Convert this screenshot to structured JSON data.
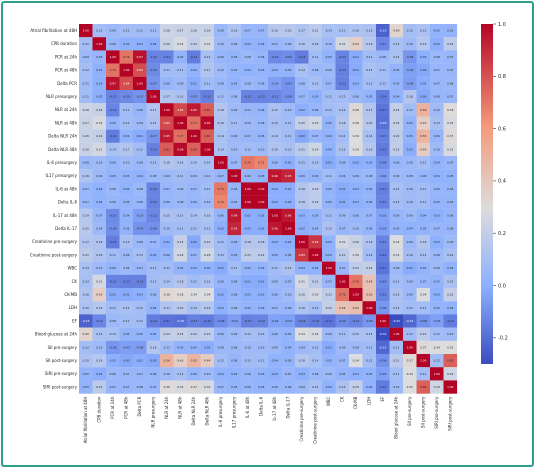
{
  "chart_data": {
    "type": "heatmap",
    "title": "",
    "xlabel": "",
    "ylabel": "",
    "variables": [
      "Atrial fibrillation at 48H",
      "CPB duration",
      "PCR at 24h",
      "PCR at 48h",
      "Delta PCR",
      "NLR presurgery",
      "NLR at 24h",
      "NLR at 48h",
      "Delta NLR 24h",
      "Delta NLR 48h",
      "IL-6 presurgery",
      "IL17 presurgery",
      "IL-6 at 48h",
      "Delta IL-6",
      "IL-17 at 48h",
      "Delta IL-17",
      "Creatinine pre-surgery",
      "Creatinine post-surgery",
      "WBC",
      "CK",
      "CK-MB",
      "LDH",
      "EF",
      "Blood glucose at 24h",
      "SII pre-surgery",
      "SII post-surgery",
      "SIRI pre-surgery",
      "SIRI post-surgery"
    ],
    "colorbar": {
      "min": -0.3,
      "max": 1.0,
      "ticks": [
        1.0,
        0.8,
        0.6,
        0.4,
        0.2,
        0.0,
        -0.2
      ]
    },
    "matrix": [
      [
        1.0,
        0.12,
        0.09,
        0.12,
        0.11,
        0.11,
        0.28,
        0.27,
        0.26,
        0.26,
        0.08,
        0.16,
        0.07,
        0.07,
        0.19,
        0.2,
        0.17,
        0.21,
        0.14,
        0.13,
        0.16,
        0.15,
        -0.23,
        0.4,
        0.12,
        0.15,
        0.05,
        0.05
      ],
      [
        0.12,
        1.0,
        0.06,
        0.03,
        0.03,
        0.02,
        0.26,
        0.32,
        0.24,
        0.31,
        0.1,
        0.09,
        0.04,
        0.04,
        0.07,
        0.09,
        0.16,
        0.16,
        0.1,
        0.31,
        0.43,
        0.19,
        -0.11,
        0.14,
        0.1,
        0.19,
        0.02,
        0.22
      ],
      [
        0.09,
        0.06,
        1.0,
        0.76,
        0.97,
        -0.12,
        -0.12,
        0.05,
        -0.14,
        0.14,
        0.06,
        0.05,
        0.08,
        0.06,
        -0.1,
        -0.09,
        -0.14,
        0.11,
        0.05,
        -0.12,
        0.01,
        0.11,
        0.08,
        0.14,
        -0.06,
        0.03,
        0.08,
        0.07
      ],
      [
        0.12,
        0.03,
        0.76,
        1.0,
        0.84,
        -0.1,
        0.11,
        0.11,
        0.04,
        0.17,
        0.1,
        0.05,
        0.04,
        0.05,
        0.04,
        0.05,
        0.14,
        0.08,
        0.09,
        -0.13,
        0.01,
        0.14,
        0.11,
        0.05,
        -0.03,
        0.0,
        0.07,
        0.07
      ],
      [
        0.11,
        0.03,
        0.97,
        0.84,
        1.0,
        -0.07,
        0.06,
        0.09,
        0.01,
        0.11,
        0.08,
        0.04,
        0.08,
        0.06,
        -0.03,
        -0.07,
        0.08,
        0.13,
        0.07,
        -0.13,
        0.03,
        0.12,
        0.11,
        0.05,
        -0.04,
        0.02,
        0.07,
        0.08
      ],
      [
        0.11,
        0.02,
        -0.12,
        -0.1,
        -0.07,
        1.0,
        0.17,
        0.15,
        -0.07,
        -0.13,
        0.11,
        0.08,
        -0.12,
        -0.12,
        -0.11,
        -0.08,
        0.07,
        0.03,
        0.11,
        0.12,
        0.08,
        0.05,
        -0.14,
        0.04,
        0.18,
        0.0,
        0.06,
        0.07
      ],
      [
        0.28,
        0.26,
        -0.12,
        0.11,
        0.06,
        0.17,
        1.0,
        0.85,
        0.95,
        0.81,
        0.18,
        0.09,
        0.07,
        0.06,
        0.15,
        0.1,
        0.02,
        0.06,
        0.11,
        0.14,
        0.38,
        0.17,
        -0.17,
        0.24,
        0.11,
        0.56,
        0.1,
        0.36
      ],
      [
        0.27,
        0.32,
        0.05,
        0.11,
        0.09,
        0.15,
        0.85,
        1.0,
        0.77,
        0.99,
        0.16,
        0.11,
        0.09,
        0.08,
        0.13,
        0.11,
        0.25,
        0.29,
        0.05,
        0.18,
        0.36,
        0.2,
        -0.18,
        0.25,
        0.05,
        0.43,
        0.13,
        0.33
      ],
      [
        0.26,
        0.24,
        -0.14,
        0.04,
        0.01,
        -0.07,
        0.95,
        0.77,
        1.0,
        0.8,
        0.14,
        0.09,
        0.07,
        0.06,
        0.14,
        0.11,
        0.0,
        0.07,
        0.04,
        0.11,
        0.34,
        0.14,
        -0.13,
        0.22,
        0.05,
        0.55,
        0.06,
        0.37
      ],
      [
        0.26,
        0.31,
        0.14,
        0.17,
        0.11,
        -0.13,
        0.81,
        0.99,
        0.8,
        1.0,
        0.14,
        0.1,
        0.11,
        0.1,
        0.16,
        0.13,
        0.21,
        0.29,
        0.04,
        0.15,
        0.34,
        0.19,
        -0.15,
        0.23,
        0.02,
        0.44,
        0.1,
        0.32
      ],
      [
        0.08,
        0.1,
        0.06,
        0.1,
        0.08,
        0.11,
        0.18,
        0.16,
        0.14,
        0.14,
        1.0,
        0.07,
        0.75,
        0.72,
        0.06,
        0.02,
        0.11,
        0.13,
        0.01,
        0.06,
        0.02,
        0.03,
        -0.09,
        0.06,
        0.08,
        0.12,
        0.04,
        0.07
      ],
      [
        0.16,
        0.09,
        0.05,
        0.05,
        0.04,
        0.08,
        0.09,
        0.11,
        0.09,
        0.1,
        0.07,
        1.0,
        0.06,
        0.05,
        0.96,
        0.93,
        0.06,
        0.05,
        0.11,
        0.06,
        0.06,
        0.08,
        -0.04,
        0.09,
        0.08,
        0.06,
        0.04,
        0.05
      ],
      [
        0.07,
        0.04,
        0.08,
        0.04,
        0.08,
        -0.12,
        0.07,
        0.09,
        0.07,
        0.11,
        0.75,
        0.06,
        1.0,
        1.0,
        0.02,
        0.02,
        0.18,
        0.23,
        0.05,
        0.01,
        0.03,
        0.05,
        -0.13,
        0.13,
        0.1,
        0.11,
        0.06,
        0.06
      ],
      [
        0.07,
        0.04,
        0.06,
        0.05,
        0.06,
        -0.12,
        0.06,
        0.08,
        0.06,
        0.1,
        0.72,
        0.05,
        1.0,
        1.0,
        0.02,
        0.02,
        0.18,
        0.22,
        0.05,
        0.01,
        0.03,
        0.05,
        -0.12,
        0.12,
        0.1,
        0.11,
        0.05,
        0.05
      ],
      [
        0.19,
        0.07,
        -0.1,
        0.04,
        -0.03,
        -0.11,
        0.15,
        0.13,
        0.14,
        0.16,
        0.06,
        0.96,
        0.02,
        0.02,
        1.0,
        0.96,
        0.03,
        0.05,
        0.11,
        0.09,
        0.06,
        0.07,
        -0.02,
        0.06,
        0.09,
        0.04,
        0.03,
        0.06
      ],
      [
        0.2,
        0.09,
        -0.09,
        0.05,
        -0.07,
        -0.08,
        0.1,
        0.11,
        0.11,
        0.13,
        0.02,
        0.93,
        0.02,
        0.02,
        0.96,
        1.0,
        0.02,
        0.05,
        0.15,
        0.07,
        0.1,
        0.06,
        -0.03,
        0.05,
        0.04,
        0.05,
        0.07,
        0.06
      ],
      [
        0.17,
        0.16,
        -0.14,
        0.14,
        0.08,
        0.07,
        0.02,
        0.25,
        0.0,
        0.21,
        0.11,
        0.06,
        0.18,
        0.18,
        0.03,
        0.02,
        1.0,
        0.89,
        0.04,
        0.31,
        0.26,
        0.16,
        -0.12,
        0.34,
        0.09,
        0.18,
        0.03,
        0.09
      ],
      [
        0.21,
        0.16,
        0.11,
        0.08,
        0.13,
        0.03,
        0.06,
        0.29,
        0.07,
        0.29,
        0.13,
        0.05,
        0.23,
        0.22,
        0.05,
        0.05,
        0.89,
        1.0,
        0.04,
        0.21,
        0.3,
        0.12,
        -0.14,
        0.32,
        0.12,
        0.14,
        0.08,
        0.14
      ],
      [
        0.14,
        0.1,
        0.05,
        0.09,
        0.07,
        0.11,
        0.11,
        0.05,
        0.04,
        0.04,
        0.01,
        0.11,
        0.05,
        0.05,
        0.11,
        0.15,
        0.04,
        0.04,
        1.0,
        0.07,
        0.23,
        0.25,
        -0.17,
        0.09,
        0.01,
        0.05,
        0.09,
        0.04
      ],
      [
        0.13,
        0.31,
        -0.12,
        -0.13,
        -0.13,
        0.12,
        0.14,
        0.18,
        0.11,
        0.15,
        0.06,
        0.06,
        0.01,
        0.01,
        0.09,
        0.07,
        0.31,
        0.21,
        0.07,
        1.0,
        0.76,
        0.48,
        -0.1,
        0.11,
        0.09,
        0.07,
        0.05,
        0.15
      ],
      [
        0.16,
        0.43,
        0.01,
        0.01,
        0.03,
        0.08,
        0.38,
        0.36,
        0.34,
        0.34,
        0.02,
        0.06,
        0.03,
        0.03,
        0.06,
        0.1,
        0.26,
        0.3,
        0.23,
        0.76,
        1.0,
        0.5,
        -0.12,
        0.15,
        0.09,
        0.34,
        0.03,
        0.25
      ],
      [
        0.15,
        0.19,
        0.11,
        0.14,
        0.12,
        0.05,
        0.17,
        0.2,
        0.14,
        0.19,
        0.03,
        0.08,
        0.05,
        0.05,
        0.07,
        0.06,
        0.16,
        0.12,
        0.25,
        0.48,
        0.5,
        1.0,
        -0.06,
        0.14,
        0.11,
        0.12,
        0.05,
        0.04
      ],
      [
        -0.23,
        -0.11,
        0.08,
        0.11,
        0.11,
        -0.14,
        -0.17,
        -0.18,
        -0.13,
        -0.15,
        -0.09,
        -0.04,
        -0.13,
        -0.12,
        -0.02,
        -0.03,
        -0.12,
        -0.14,
        -0.17,
        -0.1,
        -0.12,
        -0.06,
        1.0,
        -0.34,
        -0.21,
        -0.08,
        -0.03,
        -0.14
      ],
      [
        0.4,
        0.14,
        0.14,
        0.05,
        0.05,
        0.04,
        0.24,
        0.25,
        0.22,
        0.23,
        0.06,
        0.09,
        0.13,
        0.12,
        0.06,
        0.05,
        0.34,
        0.32,
        0.09,
        0.11,
        0.15,
        0.14,
        -0.34,
        1.0,
        0.11,
        0.21,
        0.11,
        0.1
      ],
      [
        0.12,
        0.1,
        -0.06,
        -0.03,
        -0.04,
        0.18,
        0.11,
        0.05,
        0.05,
        0.02,
        0.08,
        0.08,
        0.1,
        0.1,
        0.09,
        0.04,
        0.09,
        0.12,
        0.01,
        0.09,
        0.09,
        0.11,
        -0.21,
        0.11,
        1.0,
        0.37,
        0.34,
        0.35
      ],
      [
        0.15,
        0.19,
        0.03,
        0.0,
        0.02,
        0.0,
        0.56,
        0.43,
        0.55,
        0.44,
        0.12,
        0.06,
        0.11,
        0.11,
        0.04,
        0.05,
        0.18,
        0.14,
        0.05,
        0.07,
        0.34,
        0.12,
        -0.08,
        0.21,
        0.37,
        1.0,
        0.12,
        0.8
      ],
      [
        0.05,
        0.02,
        0.08,
        0.07,
        0.07,
        0.06,
        0.1,
        0.13,
        0.06,
        0.1,
        0.04,
        0.04,
        0.06,
        0.05,
        0.03,
        0.07,
        0.03,
        0.08,
        0.09,
        0.05,
        0.03,
        0.05,
        -0.03,
        0.11,
        0.34,
        0.12,
        1.0,
        0.29
      ],
      [
        0.05,
        0.22,
        0.07,
        0.07,
        0.08,
        0.07,
        0.36,
        0.33,
        0.37,
        0.32,
        0.07,
        0.05,
        0.06,
        0.05,
        0.06,
        0.06,
        0.09,
        0.14,
        0.04,
        0.15,
        0.25,
        0.04,
        -0.14,
        0.1,
        0.35,
        0.8,
        0.29,
        1.0
      ]
    ]
  }
}
